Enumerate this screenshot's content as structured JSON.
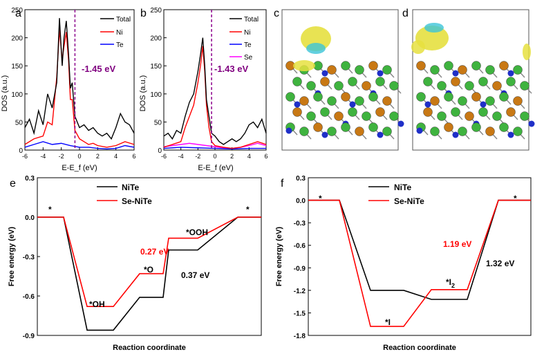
{
  "chart_data": [
    {
      "panel": "a",
      "type": "line",
      "xlabel": "E-E_f (eV)",
      "ylabel": "DOS (a.u.)",
      "xlim": [
        -6,
        6
      ],
      "ylim": [
        0,
        250
      ],
      "xticks": [
        "-6",
        "-4",
        "-2",
        "0",
        "2",
        "4",
        "6"
      ],
      "yticks": [
        "0",
        "50",
        "100",
        "150",
        "200",
        "250"
      ],
      "annotation": "-1.45 eV",
      "legend": [
        "Total",
        "Ni",
        "Te"
      ],
      "series": [
        {
          "name": "Total",
          "color": "#000000",
          "x": [
            -6,
            -5.5,
            -5,
            -4.5,
            -4,
            -3.5,
            -3,
            -2.5,
            -2.2,
            -1.9,
            -1.7,
            -1.45,
            -1.2,
            -1,
            -0.8,
            -0.5,
            0,
            0.5,
            1,
            1.5,
            2,
            2.5,
            3,
            3.5,
            4,
            4.5,
            5,
            5.5,
            6
          ],
          "y": [
            40,
            55,
            30,
            70,
            45,
            100,
            75,
            120,
            235,
            150,
            200,
            230,
            170,
            110,
            120,
            60,
            40,
            45,
            35,
            40,
            30,
            25,
            30,
            20,
            40,
            65,
            50,
            45,
            30
          ]
        },
        {
          "name": "Ni",
          "color": "#ff0000",
          "x": [
            -6,
            -5,
            -4,
            -3.5,
            -3,
            -2.5,
            -2.2,
            -1.9,
            -1.7,
            -1.45,
            -1.2,
            -1,
            -0.8,
            -0.5,
            0,
            0.5,
            1,
            1.5,
            2,
            3,
            4,
            5,
            6
          ],
          "y": [
            10,
            20,
            25,
            50,
            45,
            130,
            215,
            160,
            185,
            210,
            160,
            90,
            90,
            35,
            20,
            15,
            10,
            12,
            8,
            5,
            8,
            15,
            10
          ]
        },
        {
          "name": "Te",
          "color": "#0000ff",
          "x": [
            -6,
            -5,
            -4,
            -3,
            -2,
            -1,
            0,
            1,
            2,
            3,
            4,
            5,
            6
          ],
          "y": [
            5,
            10,
            15,
            10,
            12,
            8,
            5,
            5,
            3,
            2,
            3,
            8,
            5
          ]
        }
      ]
    },
    {
      "panel": "b",
      "type": "line",
      "xlabel": "E-E_f (eV)",
      "ylabel": "DOS (a.u.)",
      "xlim": [
        -6,
        6
      ],
      "ylim": [
        0,
        250
      ],
      "xticks": [
        "-6",
        "-4",
        "-2",
        "0",
        "2",
        "4",
        "6"
      ],
      "yticks": [
        "0",
        "50",
        "100",
        "150",
        "200",
        "250"
      ],
      "annotation": "-1.43 eV",
      "legend": [
        "Total",
        "Ni",
        "Te",
        "Se"
      ],
      "series": [
        {
          "name": "Total",
          "color": "#000000",
          "x": [
            -6,
            -5.5,
            -5,
            -4.5,
            -4,
            -3.5,
            -3,
            -2.5,
            -2,
            -1.7,
            -1.43,
            -1.2,
            -1,
            -0.7,
            -0.4,
            0,
            0.5,
            1,
            1.5,
            2,
            2.5,
            3,
            3.5,
            4,
            4.5,
            5,
            5.5,
            6
          ],
          "y": [
            25,
            30,
            20,
            35,
            30,
            60,
            85,
            100,
            140,
            170,
            200,
            150,
            90,
            60,
            30,
            25,
            15,
            10,
            15,
            20,
            15,
            20,
            30,
            45,
            50,
            40,
            55,
            30
          ]
        },
        {
          "name": "Ni",
          "color": "#ff0000",
          "x": [
            -6,
            -5,
            -4,
            -3.5,
            -3,
            -2.5,
            -2,
            -1.7,
            -1.43,
            -1.2,
            -1,
            -0.7,
            -0.4,
            0,
            1,
            2,
            3,
            4,
            5,
            6
          ],
          "y": [
            5,
            10,
            15,
            40,
            60,
            80,
            120,
            150,
            185,
            140,
            80,
            40,
            15,
            8,
            5,
            3,
            5,
            10,
            15,
            10
          ]
        },
        {
          "name": "Te",
          "color": "#0000ff",
          "x": [
            -6,
            -4,
            -2,
            0,
            2,
            4,
            6
          ],
          "y": [
            3,
            5,
            4,
            3,
            2,
            3,
            3
          ]
        },
        {
          "name": "Se",
          "color": "#ff00ff",
          "x": [
            -6,
            -5,
            -4,
            -3,
            -2,
            -1,
            0,
            1,
            2,
            3,
            4,
            5,
            6
          ],
          "y": [
            6,
            8,
            10,
            12,
            10,
            8,
            6,
            4,
            3,
            5,
            8,
            12,
            8
          ]
        }
      ]
    },
    {
      "panel": "c",
      "type": "image",
      "description_visible": false
    },
    {
      "panel": "d",
      "type": "image",
      "description_visible": false
    },
    {
      "panel": "e",
      "type": "line",
      "xlabel": "Reaction coordinate",
      "ylabel": "Free energy (eV)",
      "ylim": [
        -0.9,
        0.3
      ],
      "yticks": [
        "0.3",
        "0.0",
        "-0.3",
        "-0.6",
        "-0.9"
      ],
      "legend": [
        "NiTe",
        "Se-NiTe"
      ],
      "states": [
        "*",
        "*OH",
        "*O",
        "*OOH",
        "*"
      ],
      "state_labels": {
        "start": "*",
        "oh": "*OH",
        "o": "*O",
        "ooh": "*OOH",
        "end": "*"
      },
      "series": [
        {
          "name": "NiTe",
          "color": "#000000",
          "values": [
            0.0,
            -0.86,
            -0.61,
            -0.25,
            0.0
          ]
        },
        {
          "name": "Se-NiTe",
          "color": "#ff0000",
          "values": [
            0.0,
            -0.68,
            -0.43,
            -0.16,
            0.0
          ]
        }
      ],
      "annotations": [
        {
          "text": "0.27 eV",
          "color": "#ff0000"
        },
        {
          "text": "0.37 eV",
          "color": "#000000"
        }
      ]
    },
    {
      "panel": "f",
      "type": "line",
      "xlabel": "Reaction coordinate",
      "ylabel": "Free energy (eV)",
      "ylim": [
        -1.8,
        0.3
      ],
      "yticks": [
        "0.3",
        "0.0",
        "-0.3",
        "-0.6",
        "-0.9",
        "-1.2",
        "-1.5",
        "-1.8"
      ],
      "legend": [
        "NiTe",
        "Se-NiTe"
      ],
      "state_labels": {
        "start": "*",
        "i": "*I",
        "i2": "*I",
        "i2_sub": "2",
        "end": "*"
      },
      "series": [
        {
          "name": "NiTe",
          "color": "#000000",
          "values": [
            0.0,
            -1.2,
            -1.32,
            0.0
          ]
        },
        {
          "name": "Se-NiTe",
          "color": "#ff0000",
          "values": [
            0.0,
            -1.68,
            -1.19,
            0.0
          ]
        }
      ],
      "annotations": [
        {
          "text": "1.19 eV",
          "color": "#ff0000"
        },
        {
          "text": "1.32 eV",
          "color": "#000000"
        }
      ]
    }
  ],
  "panel_letters": {
    "a": "a",
    "b": "b",
    "c": "c",
    "d": "d",
    "e": "e",
    "f": "f"
  }
}
